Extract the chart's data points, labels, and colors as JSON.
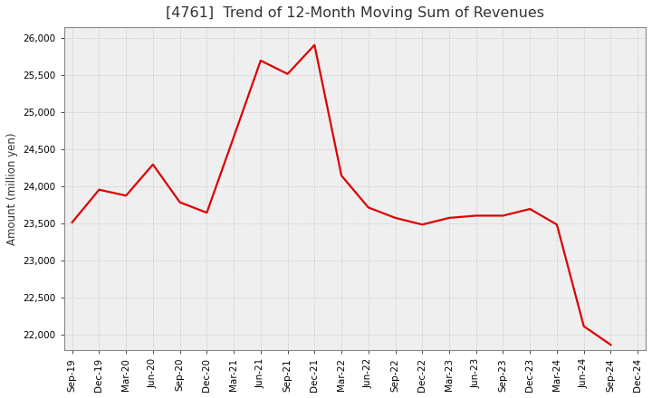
{
  "title": "[4761]  Trend of 12-Month Moving Sum of Revenues",
  "ylabel": "Amount (million yen)",
  "line_color": "#DD0000",
  "background_color": "#FFFFFF",
  "plot_bg_color": "#EFEFEF",
  "grid_color": "#BBBBBB",
  "ylim": [
    21800,
    26150
  ],
  "yticks": [
    22000,
    22500,
    23000,
    23500,
    24000,
    24500,
    25000,
    25500,
    26000
  ],
  "labels": [
    "Sep-19",
    "Dec-19",
    "Mar-20",
    "Jun-20",
    "Sep-20",
    "Dec-20",
    "Mar-21",
    "Jun-21",
    "Sep-21",
    "Dec-21",
    "Mar-22",
    "Jun-22",
    "Sep-22",
    "Dec-22",
    "Mar-23",
    "Jun-23",
    "Sep-23",
    "Dec-23",
    "Mar-24",
    "Jun-24",
    "Sep-24",
    "Dec-24"
  ],
  "values": [
    23520,
    23960,
    23880,
    24300,
    23790,
    23650,
    24670,
    25700,
    25520,
    25910,
    24150,
    23720,
    23580,
    23490,
    23580,
    23610,
    23610,
    23700,
    23490,
    22120,
    21870,
    null
  ]
}
